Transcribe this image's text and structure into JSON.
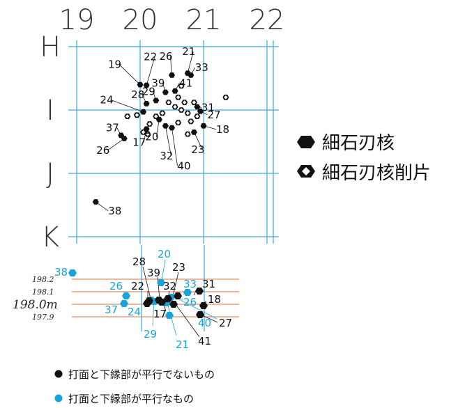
{
  "colors": {
    "grid": "#3aa6df",
    "elevation_line": "#d8713a",
    "black": "#111111",
    "blue": "#1aa3d9",
    "text": "#111111"
  },
  "plan": {
    "columns": [
      "19",
      "20",
      "21",
      "22"
    ],
    "rows": [
      "H",
      "I",
      "J",
      "K"
    ],
    "cores": [
      {
        "num": "19",
        "col": 20.0,
        "row": 0.6
      },
      {
        "num": "22",
        "col": 20.1,
        "row": 0.61
      },
      {
        "num": "26",
        "col": 20.5,
        "row": 0.45
      },
      {
        "num": "21",
        "col": 20.75,
        "row": 0.42
      },
      {
        "num": "33",
        "col": 20.8,
        "row": 0.45
      },
      {
        "num": "41",
        "col": 20.55,
        "row": 0.7
      },
      {
        "num": "39",
        "col": 20.4,
        "row": 0.72
      },
      {
        "num": "29",
        "col": 20.25,
        "row": 0.85
      },
      {
        "num": "28",
        "col": 20.1,
        "row": 0.9
      },
      {
        "num": "24",
        "col": 20.05,
        "row": 1.03
      },
      {
        "num": "31",
        "col": 20.9,
        "row": 0.95
      },
      {
        "num": "27",
        "col": 20.95,
        "row": 1.02
      },
      {
        "num": "18",
        "col": 21.0,
        "row": 1.25
      },
      {
        "num": "23",
        "col": 20.85,
        "row": 1.35
      },
      {
        "num": "37",
        "col": 19.7,
        "row": 1.4
      },
      {
        "num": "26",
        "col": 19.75,
        "row": 1.45
      },
      {
        "num": "17",
        "col": 20.1,
        "row": 1.3
      },
      {
        "num": "20",
        "col": 20.3,
        "row": 1.15
      },
      {
        "num": "32",
        "col": 20.4,
        "row": 1.25
      },
      {
        "num": "40",
        "col": 20.5,
        "row": 1.28
      },
      {
        "num": "38",
        "col": 19.3,
        "row": 2.45
      }
    ],
    "flakes": [
      {
        "col": 21.35,
        "row": 0.8
      },
      {
        "col": 19.8,
        "row": 1.1
      },
      {
        "col": 19.95,
        "row": 1.08
      },
      {
        "col": 20.6,
        "row": 0.8
      },
      {
        "col": 20.7,
        "row": 0.88
      },
      {
        "col": 20.55,
        "row": 0.95
      },
      {
        "col": 20.65,
        "row": 1.0
      },
      {
        "col": 20.75,
        "row": 1.05
      },
      {
        "col": 20.8,
        "row": 1.18
      },
      {
        "col": 20.6,
        "row": 1.2
      },
      {
        "col": 20.35,
        "row": 1.05
      },
      {
        "col": 20.25,
        "row": 1.1
      },
      {
        "col": 20.15,
        "row": 1.22
      },
      {
        "col": 20.05,
        "row": 1.35
      },
      {
        "col": 20.12,
        "row": 1.38
      },
      {
        "col": 20.75,
        "row": 1.38
      },
      {
        "col": 20.45,
        "row": 0.88
      },
      {
        "col": 20.65,
        "row": 0.62
      },
      {
        "col": 20.85,
        "row": 0.88
      },
      {
        "col": 20.9,
        "row": 1.1
      }
    ]
  },
  "legend": {
    "core_label": "細石刃核",
    "flake_label": "細石刃核削片"
  },
  "section": {
    "elevations": [
      "198.2",
      "198.1",
      "198.0m",
      "197.9"
    ],
    "black_labels": [
      "28",
      "39",
      "23",
      "22",
      "32",
      "31",
      "18",
      "17",
      "27",
      "41"
    ],
    "blue_labels": [
      "20",
      "38",
      "26",
      "33",
      "26",
      "37",
      "24",
      "40",
      "29",
      "21"
    ]
  },
  "bottom_legend": {
    "black_text": "打面と下縁部が平行でないもの",
    "blue_text": "打面と下縁部が平行なもの"
  }
}
